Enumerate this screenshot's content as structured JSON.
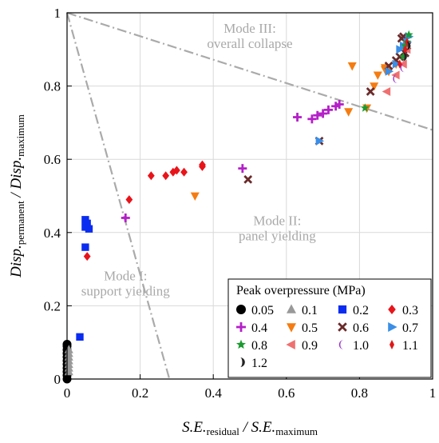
{
  "chart_data": {
    "type": "scatter",
    "xlim": [
      0,
      1
    ],
    "ylim": [
      0,
      1
    ],
    "xticks": [
      "0",
      "0.2",
      "0.4",
      "0.6",
      "0.8",
      "1"
    ],
    "yticks": [
      "0",
      "0.2",
      "0.4",
      "0.6",
      "0.8",
      "1"
    ],
    "xlabel": {
      "a": "S.E.",
      "a_sub": "residual",
      "b": " / S.E.",
      "b_sub": "maximum"
    },
    "ylabel": {
      "a": "Disp.",
      "a_sub": "permanent",
      "b": " / Disp.",
      "b_sub": "maximum"
    },
    "grid": true,
    "legend_title": "Peak overpressure (MPa)",
    "legend_placement": "bottom-right",
    "boundaries": [
      {
        "name": "Mode I boundary",
        "points": [
          [
            0,
            1
          ],
          [
            0.28,
            0
          ]
        ]
      },
      {
        "name": "Mode III boundary",
        "points": [
          [
            0,
            1
          ],
          [
            1,
            0.68
          ]
        ]
      }
    ],
    "regions": [
      {
        "lines": [
          "Mode III:",
          "overall collapse"
        ],
        "x": 0.5,
        "y": 0.945
      },
      {
        "lines": [
          "Mode II:",
          "panel yielding"
        ],
        "x": 0.575,
        "y": 0.42
      },
      {
        "lines": [
          "Mode I:",
          "support yielding"
        ],
        "x": 0.16,
        "y": 0.27
      }
    ],
    "series": [
      {
        "name": "0.05",
        "marker": "circle",
        "color": "#000000",
        "points": [
          [
            0.0,
            0.0
          ],
          [
            0.0,
            0.02
          ],
          [
            0.0,
            0.04
          ],
          [
            0.0,
            0.06
          ],
          [
            0.0,
            0.08
          ],
          [
            0.0,
            0.095
          ],
          [
            0.0,
            0.01
          ],
          [
            0.0,
            0.03
          ],
          [
            0.0,
            0.05
          ],
          [
            0.0,
            0.07
          ],
          [
            0.0,
            0.09
          ]
        ]
      },
      {
        "name": "0.1",
        "marker": "triangle-up",
        "color": "#999999",
        "points": [
          [
            0.005,
            0.08
          ],
          [
            0.005,
            0.06
          ],
          [
            0.005,
            0.04
          ],
          [
            0.005,
            0.02
          ],
          [
            0.005,
            0.07
          ],
          [
            0.005,
            0.05
          ],
          [
            0.005,
            0.03
          ]
        ]
      },
      {
        "name": "0.2",
        "marker": "square",
        "color": "#0a2cf0",
        "points": [
          [
            0.05,
            0.435
          ],
          [
            0.055,
            0.425
          ],
          [
            0.05,
            0.415
          ],
          [
            0.06,
            0.41
          ],
          [
            0.05,
            0.36
          ],
          [
            0.035,
            0.115
          ]
        ]
      },
      {
        "name": "0.3",
        "marker": "diamond",
        "color": "#e8141a",
        "points": [
          [
            0.055,
            0.335
          ],
          [
            0.17,
            0.49
          ],
          [
            0.23,
            0.555
          ],
          [
            0.27,
            0.555
          ],
          [
            0.29,
            0.565
          ],
          [
            0.3,
            0.57
          ],
          [
            0.32,
            0.565
          ],
          [
            0.37,
            0.58
          ],
          [
            0.37,
            0.585
          ]
        ]
      },
      {
        "name": "0.4",
        "marker": "plus",
        "color": "#b420c8",
        "points": [
          [
            0.16,
            0.44
          ],
          [
            0.48,
            0.575
          ],
          [
            0.63,
            0.715
          ],
          [
            0.67,
            0.71
          ],
          [
            0.685,
            0.72
          ],
          [
            0.7,
            0.725
          ],
          [
            0.715,
            0.735
          ],
          [
            0.735,
            0.745
          ],
          [
            0.745,
            0.75
          ]
        ]
      },
      {
        "name": "0.5",
        "marker": "triangle-down",
        "color": "#f57c10",
        "points": [
          [
            0.35,
            0.5
          ],
          [
            0.77,
            0.73
          ],
          [
            0.78,
            0.855
          ],
          [
            0.82,
            0.74
          ],
          [
            0.84,
            0.8
          ],
          [
            0.85,
            0.83
          ],
          [
            0.87,
            0.845
          ],
          [
            0.87,
            0.85
          ],
          [
            0.88,
            0.84
          ],
          [
            0.9,
            0.86
          ]
        ]
      },
      {
        "name": "0.6",
        "marker": "x",
        "color": "#6a2a2a",
        "points": [
          [
            0.495,
            0.545
          ],
          [
            0.69,
            0.65
          ],
          [
            0.83,
            0.785
          ],
          [
            0.88,
            0.855
          ],
          [
            0.9,
            0.87
          ],
          [
            0.91,
            0.88
          ],
          [
            0.915,
            0.93
          ],
          [
            0.93,
            0.91
          ],
          [
            0.92,
            0.935
          ],
          [
            0.925,
            0.89
          ]
        ]
      },
      {
        "name": "0.7",
        "marker": "triangle-right",
        "color": "#3a8ee6",
        "points": [
          [
            0.69,
            0.65
          ],
          [
            0.88,
            0.84
          ],
          [
            0.9,
            0.86
          ],
          [
            0.91,
            0.9
          ],
          [
            0.92,
            0.91
          ],
          [
            0.93,
            0.92
          ],
          [
            0.935,
            0.935
          ]
        ]
      },
      {
        "name": "0.8",
        "marker": "star",
        "color": "#1a9a30",
        "points": [
          [
            0.815,
            0.74
          ],
          [
            0.92,
            0.88
          ],
          [
            0.925,
            0.91
          ],
          [
            0.93,
            0.92
          ],
          [
            0.935,
            0.94
          ]
        ]
      },
      {
        "name": "0.9",
        "marker": "triangle-left",
        "color": "#f07070",
        "points": [
          [
            0.875,
            0.785
          ],
          [
            0.9,
            0.83
          ],
          [
            0.92,
            0.86
          ],
          [
            0.93,
            0.9
          ]
        ]
      },
      {
        "name": "1.0",
        "marker": "crescent",
        "color": "#9a30c8",
        "points": [
          [
            0.9,
            0.82
          ],
          [
            0.92,
            0.85
          ],
          [
            0.93,
            0.9
          ]
        ]
      },
      {
        "name": "1.1",
        "marker": "thin-diamond",
        "color": "#e01818",
        "points": [
          [
            0.91,
            0.86
          ],
          [
            0.925,
            0.9
          ],
          [
            0.93,
            0.92
          ]
        ]
      },
      {
        "name": "1.2",
        "marker": "half-circle",
        "color": "#222222",
        "points": [
          [
            0.92,
            0.88
          ],
          [
            0.93,
            0.91
          ]
        ]
      }
    ]
  }
}
